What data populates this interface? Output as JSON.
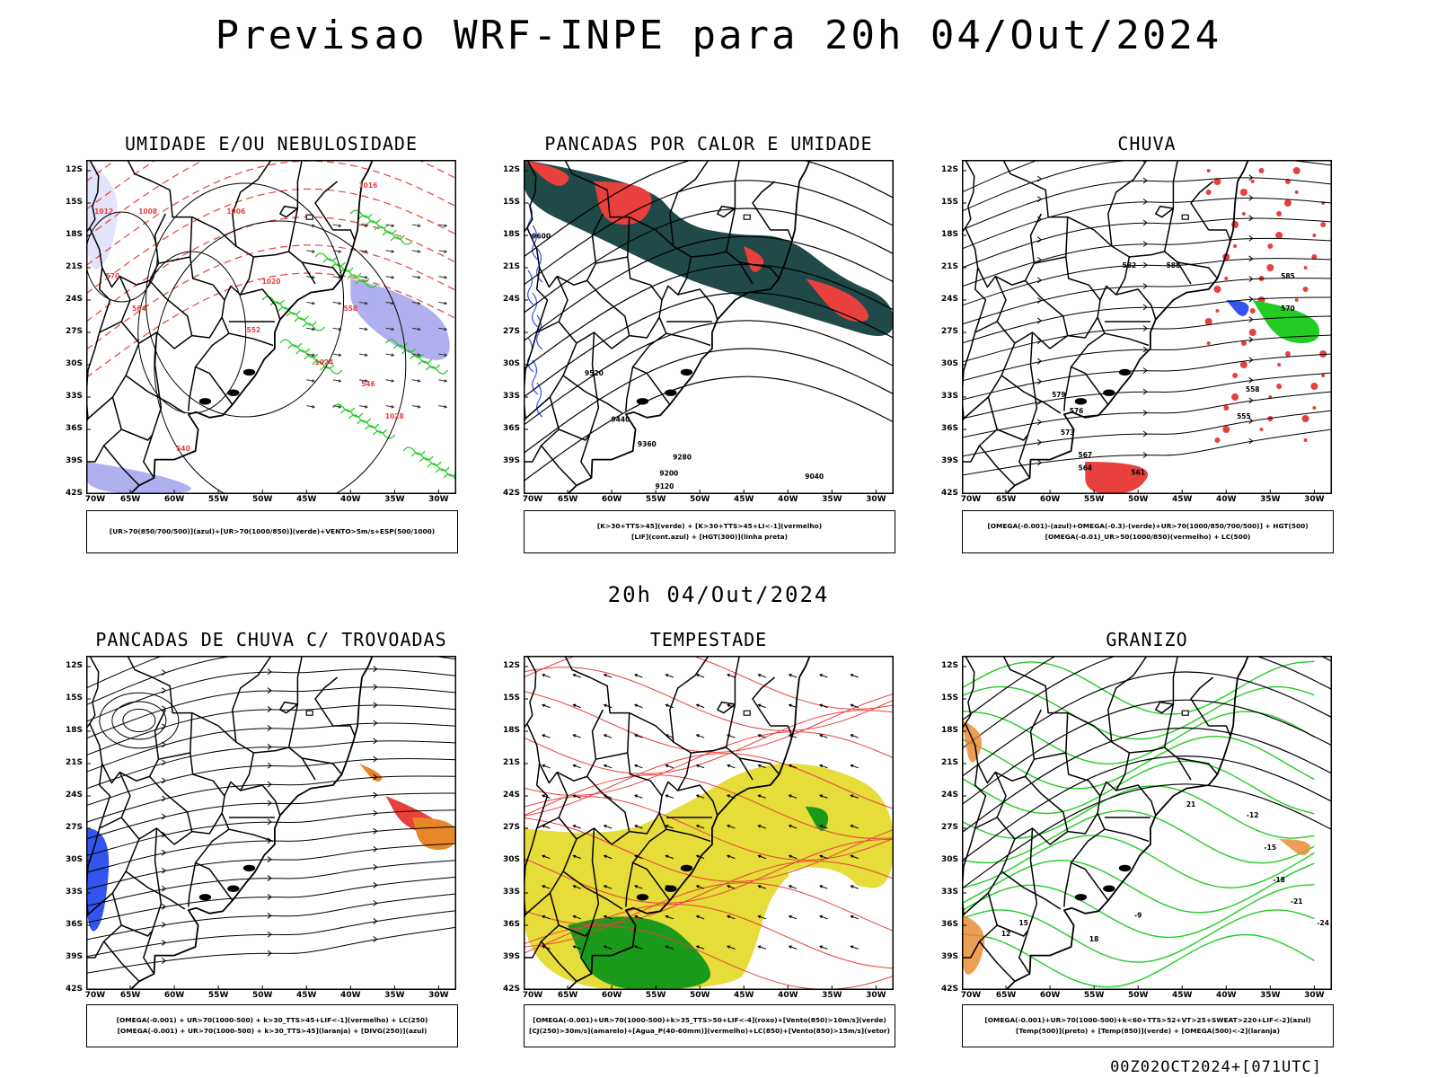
{
  "page": {
    "title": "Previsao WRF-INPE  para 20h 04/Out/2024",
    "mid_time": "20h 04/Out/2024",
    "footer": "00Z02OCT2024+[071UTC]"
  },
  "axes": {
    "lat_labels": [
      "12S",
      "15S",
      "18S",
      "21S",
      "24S",
      "27S",
      "30S",
      "33S",
      "36S",
      "39S",
      "42S"
    ],
    "lon_labels": [
      "70W",
      "65W",
      "60W",
      "55W",
      "50W",
      "45W",
      "40W",
      "35W",
      "30W"
    ]
  },
  "colors": {
    "red": "#e8403c",
    "green": "#22cc22",
    "blue": "#3355ee",
    "lavender": "#b0b0f0",
    "darkteal": "#1f4a48",
    "yellow": "#e6dc3a",
    "orange": "#e8862a",
    "darkgreen": "#1a9a1a"
  },
  "panels": [
    {
      "id": "p1",
      "title": "UMIDADE E/OU NEBULOSIDADE",
      "legend": [
        "[UR>70(850/700/500)](azul)+[UR>70(1000/850)](verde)+VENTO>5m/s+ESP(500/1000)"
      ],
      "contour_labels": [
        "1012",
        "1008",
        "1006",
        "1016",
        "1020",
        "1024",
        "1028",
        "570",
        "564",
        "558",
        "546",
        "540",
        "552"
      ]
    },
    {
      "id": "p2",
      "title": "PANCADAS POR CALOR E UMIDADE",
      "legend": [
        "[K>30+TTS>45](verde) + [K>30+TTS>45+LI<-1](vermelho)",
        "[LIF](cont.azul) + [HGT(300)](linha preta)"
      ],
      "contour_labels": [
        "9600",
        "9520",
        "9440",
        "9360",
        "9280",
        "9200",
        "9120",
        "9040"
      ]
    },
    {
      "id": "p3",
      "title": "CHUVA",
      "legend": [
        "[OMEGA(-0.001)-(azul)+OMEGA(-0.3)-(verde)+UR>70(1000/850/700/500)] + HGT(500)",
        "[OMEGA(-0.01)_UR>50(1000/850)(vermelho) + LC(500)"
      ],
      "contour_labels": [
        "582",
        "588",
        "579",
        "576",
        "573",
        "567",
        "564",
        "561",
        "558",
        "555",
        "570",
        "585"
      ]
    },
    {
      "id": "p4",
      "title": "PANCADAS DE CHUVA C/ TROVOADAS",
      "legend": [
        "[OMEGA(-0.001) + UR>70(1000-500) + k>30_TTS>45+LIF<-1](vermelho) + LC(250)",
        "[OMEGA(-0.001) + UR>70(1000-500) + k>30_TTS>45](laranja) + [DIVG(250)](azul)"
      ],
      "contour_labels": []
    },
    {
      "id": "p5",
      "title": "TEMPESTADE",
      "legend": [
        "[OMEGA(-0.001)+UR>70(1000-500)+k>35_TTS>50+LIF<-4](roxo)+[Vento(850)>10m/s](verde)",
        "[CJ(250)>30m/s](amarelo)+[Agua_P(40-60mm)](vermelho)+LC(850)+[Vento(850)>15m/s](vetor)"
      ],
      "contour_labels": []
    },
    {
      "id": "p6",
      "title": "GRANIZO",
      "legend": [
        "[OMEGA(-0.001)+UR>70(1000-500)+k<60+TTS>52+VT>25+SWEAT>220+LIF<-2](azul)",
        "[Temp(500)](preto) + [Temp(850)](verde) + [OMEGA(500)<-2](laranja)"
      ],
      "contour_labels": [
        "-12",
        "-15",
        "-18",
        "-21",
        "-24",
        "-9",
        "12",
        "15",
        "18",
        "21"
      ]
    }
  ]
}
